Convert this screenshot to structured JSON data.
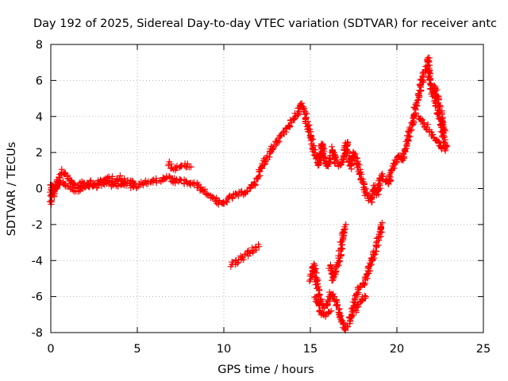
{
  "chart_data": {
    "type": "scatter",
    "title": "Day 192 of 2025, Sidereal Day-to-day VTEC variation (SDTVAR) for receiver antc",
    "xlabel": "GPS time / hours",
    "ylabel": "SDTVAR / TECUs",
    "xlim": [
      0,
      25
    ],
    "ylim": [
      -8,
      8
    ],
    "xticks": [
      0,
      5,
      10,
      15,
      20,
      25
    ],
    "yticks": [
      -8,
      -6,
      -4,
      -2,
      0,
      2,
      4,
      6,
      8
    ],
    "grid": true,
    "marker": "+",
    "series": [
      {
        "name": "SDTVAR",
        "color": "#ff0000",
        "segments": [
          [
            [
              0.0,
              -0.8
            ],
            [
              0.05,
              0.2
            ],
            [
              0.2,
              -0.4
            ],
            [
              0.35,
              0.3
            ],
            [
              0.5,
              0.7
            ],
            [
              0.7,
              1.0
            ],
            [
              0.9,
              0.8
            ],
            [
              1.1,
              0.4
            ],
            [
              1.4,
              0.2
            ],
            [
              1.7,
              0.3
            ],
            [
              2.0,
              0.2
            ],
            [
              2.3,
              0.4
            ],
            [
              2.6,
              0.3
            ],
            [
              3.0,
              0.4
            ],
            [
              3.3,
              0.6
            ],
            [
              3.6,
              0.5
            ],
            [
              4.0,
              0.6
            ],
            [
              4.4,
              0.4
            ],
            [
              4.8,
              0.3
            ],
            [
              5.0,
              0.1
            ],
            [
              5.3,
              0.3
            ],
            [
              5.7,
              0.4
            ],
            [
              6.0,
              0.4
            ],
            [
              6.4,
              0.5
            ],
            [
              6.8,
              0.6
            ],
            [
              7.2,
              0.4
            ],
            [
              7.6,
              0.4
            ],
            [
              8.0,
              0.3
            ],
            [
              8.4,
              0.2
            ],
            [
              8.8,
              -0.1
            ],
            [
              9.2,
              -0.4
            ],
            [
              9.6,
              -0.7
            ],
            [
              9.9,
              -0.9
            ],
            [
              10.2,
              -0.6
            ],
            [
              10.6,
              -0.4
            ],
            [
              11.0,
              -0.3
            ],
            [
              11.4,
              -0.1
            ],
            [
              11.8,
              0.3
            ],
            [
              12.0,
              0.8
            ],
            [
              12.4,
              1.6
            ],
            [
              12.8,
              2.3
            ],
            [
              13.2,
              2.8
            ],
            [
              13.6,
              3.3
            ],
            [
              14.0,
              3.8
            ],
            [
              14.3,
              4.3
            ],
            [
              14.5,
              4.7
            ],
            [
              14.7,
              4.2
            ],
            [
              14.9,
              3.3
            ],
            [
              15.1,
              2.6
            ],
            [
              15.3,
              1.8
            ],
            [
              15.5,
              1.3
            ],
            [
              15.7,
              2.5
            ],
            [
              15.9,
              1.2
            ],
            [
              16.1,
              1.5
            ],
            [
              16.3,
              2.2
            ],
            [
              16.5,
              1.4
            ],
            [
              16.7,
              1.3
            ],
            [
              16.9,
              1.6
            ],
            [
              17.1,
              2.6
            ],
            [
              17.3,
              1.2
            ],
            [
              17.5,
              2.0
            ],
            [
              17.7,
              1.4
            ],
            [
              17.9,
              0.8
            ],
            [
              18.1,
              0.1
            ],
            [
              18.3,
              -0.5
            ],
            [
              18.5,
              -0.7
            ],
            [
              18.7,
              0.1
            ],
            [
              18.9,
              -0.3
            ],
            [
              19.1,
              0.7
            ],
            [
              19.3,
              0.5
            ],
            [
              19.5,
              0.3
            ],
            [
              19.7,
              1.0
            ],
            [
              19.9,
              1.4
            ],
            [
              20.1,
              1.8
            ],
            [
              20.3,
              1.5
            ],
            [
              20.5,
              2.3
            ],
            [
              20.7,
              3.0
            ],
            [
              20.9,
              3.7
            ],
            [
              21.1,
              4.5
            ],
            [
              21.3,
              5.3
            ],
            [
              21.5,
              6.2
            ],
            [
              21.7,
              6.6
            ],
            [
              21.8,
              7.2
            ],
            [
              21.9,
              6.0
            ],
            [
              22.1,
              5.2
            ],
            [
              22.3,
              4.6
            ],
            [
              22.5,
              3.8
            ],
            [
              22.7,
              2.8
            ],
            [
              22.85,
              2.3
            ]
          ],
          [
            [
              0.0,
              0.1
            ],
            [
              0.3,
              0.0
            ],
            [
              0.6,
              0.4
            ],
            [
              1.0,
              0.1
            ],
            [
              1.5,
              -0.1
            ],
            [
              2.0,
              0.2
            ],
            [
              2.6,
              0.1
            ],
            [
              3.2,
              0.4
            ],
            [
              3.8,
              0.1
            ],
            [
              4.3,
              0.3
            ],
            [
              4.8,
              0.1
            ]
          ],
          [
            [
              21.3,
              4.0
            ],
            [
              21.6,
              3.6
            ],
            [
              21.9,
              3.2
            ],
            [
              22.2,
              2.8
            ],
            [
              22.5,
              2.4
            ],
            [
              22.8,
              2.1
            ]
          ],
          [
            [
              22.2,
              5.6
            ],
            [
              22.4,
              4.8
            ],
            [
              22.6,
              3.9
            ],
            [
              22.8,
              3.2
            ]
          ],
          [
            [
              6.8,
              1.4
            ],
            [
              7.1,
              1.1
            ],
            [
              7.4,
              1.3
            ],
            [
              7.8,
              1.3
            ],
            [
              8.1,
              1.2
            ]
          ],
          [
            [
              10.4,
              -4.2
            ],
            [
              10.7,
              -4.1
            ],
            [
              11.0,
              -3.9
            ],
            [
              11.4,
              -3.6
            ],
            [
              11.8,
              -3.3
            ],
            [
              12.0,
              -3.1
            ]
          ],
          [
            [
              15.0,
              -5.1
            ],
            [
              15.2,
              -4.2
            ],
            [
              15.4,
              -5.5
            ],
            [
              15.6,
              -6.3
            ],
            [
              15.8,
              -6.6
            ],
            [
              16.0,
              -6.4
            ],
            [
              16.2,
              -5.8
            ],
            [
              16.4,
              -6.1
            ],
            [
              16.6,
              -6.6
            ],
            [
              16.8,
              -7.2
            ],
            [
              17.0,
              -7.8
            ],
            [
              17.2,
              -7.5
            ],
            [
              17.4,
              -6.8
            ],
            [
              17.6,
              -6.0
            ],
            [
              17.8,
              -5.6
            ],
            [
              18.0,
              -5.4
            ],
            [
              18.2,
              -5.0
            ],
            [
              18.4,
              -4.4
            ],
            [
              18.6,
              -3.8
            ],
            [
              18.8,
              -3.2
            ],
            [
              19.0,
              -2.6
            ],
            [
              19.15,
              -1.9
            ]
          ],
          [
            [
              16.1,
              -4.2
            ],
            [
              16.3,
              -5.1
            ],
            [
              16.5,
              -4.6
            ],
            [
              16.7,
              -3.7
            ],
            [
              16.9,
              -2.4
            ],
            [
              17.05,
              -2.0
            ]
          ],
          [
            [
              15.3,
              -6.0
            ],
            [
              15.6,
              -6.9
            ],
            [
              15.9,
              -7.0
            ],
            [
              16.2,
              -6.8
            ]
          ],
          [
            [
              17.6,
              -6.8
            ],
            [
              17.9,
              -6.3
            ],
            [
              18.2,
              -6.0
            ]
          ]
        ]
      }
    ]
  }
}
